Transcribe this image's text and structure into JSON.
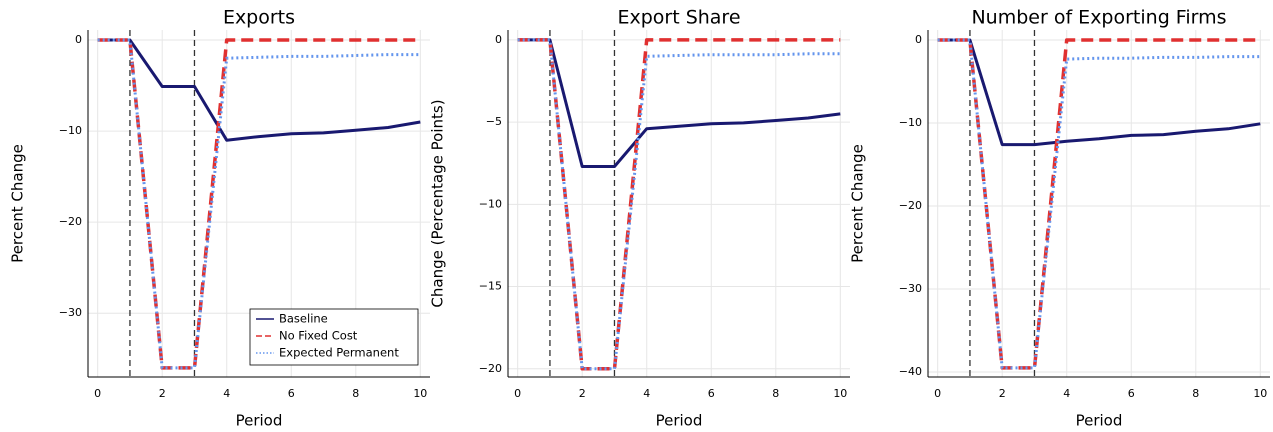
{
  "chart_data": [
    {
      "type": "line",
      "title": "Exports",
      "xlabel": "Period",
      "ylabel": "Percent Change",
      "x": [
        0,
        1,
        2,
        3,
        4,
        5,
        6,
        7,
        8,
        9,
        10
      ],
      "series": [
        {
          "name": "Baseline",
          "color": "#191970",
          "style": "solid",
          "values": [
            0,
            0,
            -5.1,
            -5.1,
            -11,
            -10.6,
            -10.3,
            -10.2,
            -9.9,
            -9.6,
            -9.0
          ]
        },
        {
          "name": "No Fixed Cost",
          "color": "#e03030",
          "style": "dash",
          "values": [
            0,
            0,
            -36,
            -36,
            0,
            0,
            0,
            0,
            0,
            0,
            0
          ]
        },
        {
          "name": "Expected Permanent",
          "color": "#6495ed",
          "style": "dot",
          "values": [
            0,
            0,
            -36,
            -36,
            -2.0,
            -1.9,
            -1.8,
            -1.8,
            -1.7,
            -1.6,
            -1.6
          ]
        }
      ],
      "xlim": [
        -0.3,
        10.3
      ],
      "xticks": [
        0,
        2,
        4,
        6,
        8,
        10
      ],
      "ylim": [
        -37,
        1.1
      ],
      "yticks": [
        0,
        {
          "value": -10,
          "label": "−10"
        },
        {
          "value": -20,
          "label": "−20"
        },
        {
          "value": -30,
          "label": "−30"
        }
      ],
      "vlines": [
        1,
        3
      ],
      "grid": true,
      "legend": "bottom-right"
    },
    {
      "type": "line",
      "title": "Export Share",
      "xlabel": "Period",
      "ylabel": "Change (Percentage Points)",
      "x": [
        0,
        1,
        2,
        3,
        4,
        5,
        6,
        7,
        8,
        9,
        10
      ],
      "series": [
        {
          "name": "Baseline",
          "color": "#191970",
          "style": "solid",
          "values": [
            0,
            0,
            -7.7,
            -7.7,
            -5.4,
            -5.25,
            -5.1,
            -5.05,
            -4.9,
            -4.75,
            -4.5
          ]
        },
        {
          "name": "No Fixed Cost",
          "color": "#e03030",
          "style": "dash",
          "values": [
            0,
            0,
            -20,
            -20,
            0,
            0,
            0,
            0,
            0,
            0,
            0
          ]
        },
        {
          "name": "Expected Permanent",
          "color": "#6495ed",
          "style": "dot",
          "values": [
            0,
            0,
            -20,
            -20,
            -1.0,
            -0.95,
            -0.9,
            -0.9,
            -0.9,
            -0.85,
            -0.85
          ]
        }
      ],
      "xlim": [
        -0.3,
        10.3
      ],
      "xticks": [
        0,
        2,
        4,
        6,
        8,
        10
      ],
      "ylim": [
        -20.5,
        0.6
      ],
      "yticks": [
        0,
        {
          "value": -5,
          "label": "−5"
        },
        {
          "value": -10,
          "label": "−10"
        },
        {
          "value": -15,
          "label": "−15"
        },
        {
          "value": -20,
          "label": "−20"
        }
      ],
      "vlines": [
        1,
        3
      ],
      "grid": true
    },
    {
      "type": "line",
      "title": "Number of Exporting Firms",
      "xlabel": "Period",
      "ylabel": "Percent Change",
      "x": [
        0,
        1,
        2,
        3,
        4,
        5,
        6,
        7,
        8,
        9,
        10
      ],
      "series": [
        {
          "name": "Baseline",
          "color": "#191970",
          "style": "solid",
          "values": [
            0,
            0,
            -12.6,
            -12.6,
            -12.2,
            -11.9,
            -11.5,
            -11.4,
            -11.0,
            -10.7,
            -10.1
          ]
        },
        {
          "name": "No Fixed Cost",
          "color": "#e03030",
          "style": "dash",
          "values": [
            0,
            0,
            -39.5,
            -39.5,
            0,
            0,
            0,
            0,
            0,
            0,
            0
          ]
        },
        {
          "name": "Expected Permanent",
          "color": "#6495ed",
          "style": "dot",
          "values": [
            0,
            0,
            -39.5,
            -39.5,
            -2.3,
            -2.2,
            -2.2,
            -2.1,
            -2.1,
            -2.0,
            -2.0
          ]
        }
      ],
      "xlim": [
        -0.3,
        10.3
      ],
      "xticks": [
        0,
        2,
        4,
        6,
        8,
        10
      ],
      "ylim": [
        -40.6,
        1.2
      ],
      "yticks": [
        0,
        {
          "value": -10,
          "label": "−10"
        },
        {
          "value": -20,
          "label": "−20"
        },
        {
          "value": -30,
          "label": "−30"
        },
        {
          "value": -40,
          "label": "−40"
        }
      ],
      "vlines": [
        1,
        3
      ],
      "grid": true
    }
  ]
}
